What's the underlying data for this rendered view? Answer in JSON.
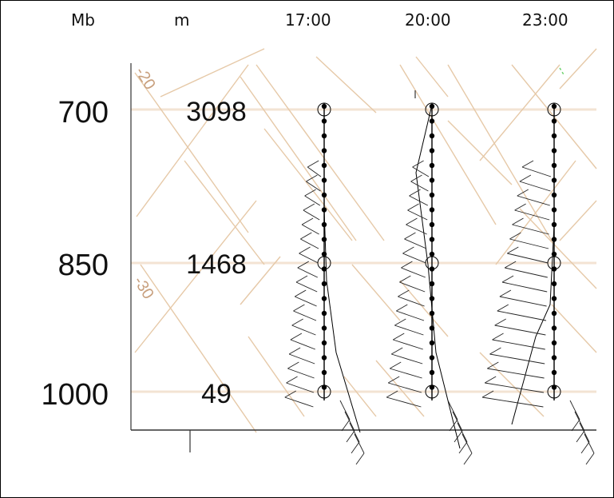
{
  "header": {
    "pressure_label": "Mb",
    "height_label": "m",
    "times": [
      "17:00",
      "20:00",
      "23:00"
    ]
  },
  "levels": [
    {
      "pressure": "700",
      "height": "3098"
    },
    {
      "pressure": "850",
      "height": "1468"
    },
    {
      "pressure": "1000",
      "height": "49"
    }
  ],
  "isotherm_labels": [
    "-20",
    "-30"
  ],
  "colors": {
    "grid": "#f3e3d3",
    "isotherm": "#e6c9a8",
    "isotherm_label": "#c8a07e",
    "sounding": "#000000",
    "accent_dash": "#6fd36f"
  }
}
